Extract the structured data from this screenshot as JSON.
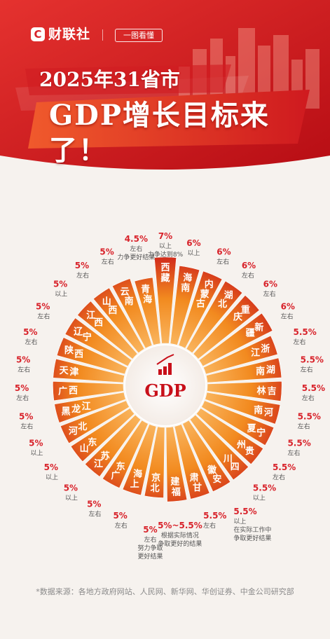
{
  "brand": {
    "logo_letter": "C",
    "name": "财联社",
    "tag": "一图看懂"
  },
  "title": {
    "line1": "2025年31省市",
    "line2": "GDP增长目标来了！"
  },
  "center_label": "GDP",
  "source": "*数据来源：各地方政府网站、人民网、新华网、华创证券、中金公司研究部",
  "colors": {
    "brand_red": "#d8232b",
    "deep_red": "#c8101a",
    "orange": "#f28a1f",
    "light_orange": "#f9b45d",
    "ring_text": "#d8232b",
    "note_text": "#555555"
  },
  "chart_data": {
    "type": "radial-bar",
    "title": "2025年31省市 GDP增长目标来了！",
    "unit": "%",
    "items": [
      {
        "province": "西藏",
        "target": 7,
        "label": "7%",
        "note": "以上\n力争达到8%"
      },
      {
        "province": "海南",
        "target": 6,
        "label": "6%",
        "note": "以上"
      },
      {
        "province": "内蒙古",
        "target": 6,
        "label": "6%",
        "note": "左右"
      },
      {
        "province": "湖北",
        "target": 6,
        "label": "6%",
        "note": "左右"
      },
      {
        "province": "重庆",
        "target": 6,
        "label": "6%",
        "note": "左右"
      },
      {
        "province": "新疆",
        "target": 6,
        "label": "6%",
        "note": "左右"
      },
      {
        "province": "浙江",
        "target": 5.5,
        "label": "5.5%",
        "note": "左右"
      },
      {
        "province": "湖南",
        "target": 5.5,
        "label": "5.5%",
        "note": "左右"
      },
      {
        "province": "吉林",
        "target": 5.5,
        "label": "5.5%",
        "note": "左右"
      },
      {
        "province": "河南",
        "target": 5.5,
        "label": "5.5%",
        "note": "左右"
      },
      {
        "province": "宁夏",
        "target": 5.5,
        "label": "5.5%",
        "note": "左右"
      },
      {
        "province": "贵州",
        "target": 5.5,
        "label": "5.5%",
        "note": "左右"
      },
      {
        "province": "四川",
        "target": 5.5,
        "label": "5.5%",
        "note": "以上"
      },
      {
        "province": "安徽",
        "target": 5.5,
        "label": "5.5%",
        "note": "以上\n在实际工作中\n争取更好结果"
      },
      {
        "province": "甘肃",
        "target": 5.5,
        "label": "5.5%",
        "note": "左右"
      },
      {
        "province": "福建",
        "target": 5.5,
        "label": "5%~5.5%",
        "note": "根据实际情况\n争取更好的结果"
      },
      {
        "province": "北京",
        "target": 5,
        "label": "5%",
        "note": "左右\n努力争取\n更好结果"
      },
      {
        "province": "上海",
        "target": 5,
        "label": "5%",
        "note": "左右"
      },
      {
        "province": "广东",
        "target": 5,
        "label": "5%",
        "note": "左右"
      },
      {
        "province": "江苏",
        "target": 5,
        "label": "5%",
        "note": "以上"
      },
      {
        "province": "山东",
        "target": 5,
        "label": "5%",
        "note": "以上"
      },
      {
        "province": "河北",
        "target": 5,
        "label": "5%",
        "note": "以上"
      },
      {
        "province": "黑龙江",
        "target": 5,
        "label": "5%",
        "note": "左右"
      },
      {
        "province": "广西",
        "target": 5,
        "label": "5%",
        "note": "左右"
      },
      {
        "province": "天津",
        "target": 5,
        "label": "5%",
        "note": "左右"
      },
      {
        "province": "陕西",
        "target": 5,
        "label": "5%",
        "note": "左右"
      },
      {
        "province": "辽宁",
        "target": 5,
        "label": "5%",
        "note": "左右"
      },
      {
        "province": "江西",
        "target": 5,
        "label": "5%",
        "note": "以上"
      },
      {
        "province": "山西",
        "target": 5,
        "label": "5%",
        "note": "左右"
      },
      {
        "province": "云南",
        "target": 5,
        "label": "5%",
        "note": "左右"
      },
      {
        "province": "青海",
        "target": 4.5,
        "label": "4.5%",
        "note": "左右\n力争更好结果"
      }
    ]
  }
}
